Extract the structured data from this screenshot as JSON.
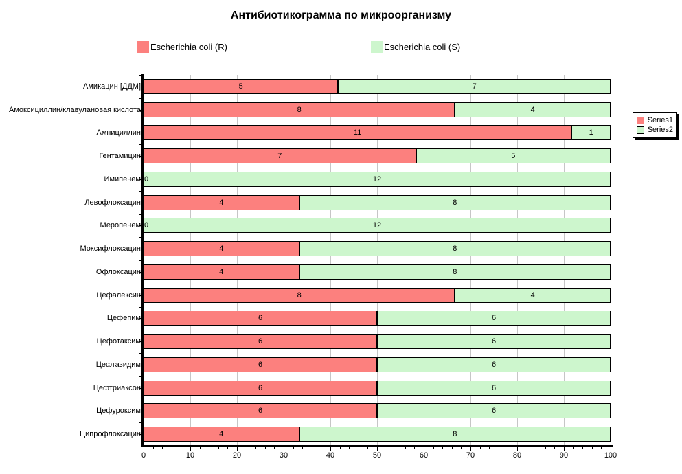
{
  "title": "Антибиотикограмма по микроорганизму",
  "top_legend": {
    "r": {
      "label": "Escherichia coli (R)",
      "color": "#FC807E"
    },
    "s": {
      "label": "Escherichia coli (S)",
      "color": "#CDF6CD"
    }
  },
  "series_legend": {
    "items": [
      {
        "label": "Series1",
        "color": "#FC807E"
      },
      {
        "label": "Series2",
        "color": "#CDF6CD"
      }
    ]
  },
  "chart_data": {
    "type": "bar",
    "orientation": "horizontal",
    "stacked": true,
    "normalized_to_percent": true,
    "title": "Антибиотикограмма по микроорганизму",
    "categories": [
      "Амикацин [ДДМ]",
      "Амоксициллин/клавулановая кислота",
      "Ампициллин",
      "Гентамицин",
      "Имипенем",
      "Левофлоксацин",
      "Меропенем",
      "Моксифлоксацин",
      "Офлоксацин",
      "Цефалексин",
      "Цефепим",
      "Цефотаксим",
      "Цефтазидим",
      "Цефтриаксон",
      "Цефуроксим",
      "Ципрофлоксацин"
    ],
    "series": [
      {
        "name": "Escherichia coli (R)",
        "legend_alias": "Series1",
        "color": "#FC807E",
        "values": [
          5,
          8,
          11,
          7,
          0,
          4,
          0,
          4,
          4,
          8,
          6,
          6,
          6,
          6,
          6,
          4
        ]
      },
      {
        "name": "Escherichia coli (S)",
        "legend_alias": "Series2",
        "color": "#CDF6CD",
        "values": [
          7,
          4,
          1,
          5,
          12,
          8,
          12,
          8,
          8,
          4,
          6,
          6,
          6,
          6,
          6,
          8
        ]
      }
    ],
    "x_axis": {
      "min": 0,
      "max": 100,
      "major_tick_interval": 10,
      "minor_tick_interval": 2,
      "ticks": [
        0,
        10,
        20,
        30,
        40,
        50,
        60,
        70,
        80,
        90,
        100
      ]
    },
    "grid": "vertical-major",
    "gridline_color": "#C6C6C6",
    "bar_border_color": "#000000"
  }
}
